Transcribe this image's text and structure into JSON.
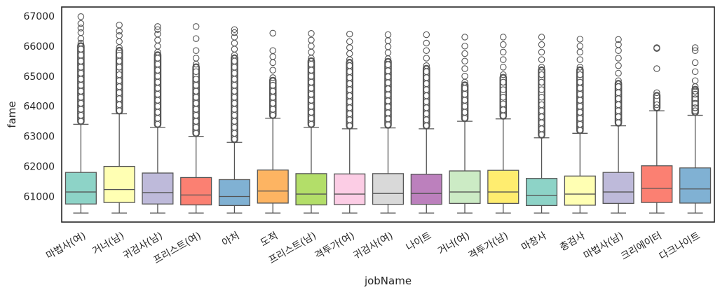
{
  "chart_data": {
    "type": "box",
    "title": "",
    "xlabel": "jobName",
    "ylabel": "fame",
    "ylim": [
      60150,
      67300
    ],
    "yticks": [
      61000,
      62000,
      63000,
      64000,
      65000,
      66000,
      67000
    ],
    "ytick_labels": [
      "61000",
      "62000",
      "63000",
      "64000",
      "65000",
      "66000",
      "67000"
    ],
    "grid": false,
    "categories": [
      "마법사(여)",
      "거너(남)",
      "귀검사(남)",
      "프리스트(여)",
      "아처",
      "도적",
      "프리스트(남)",
      "격투가(여)",
      "귀검사(여)",
      "나이트",
      "거너(여)",
      "격투가(남)",
      "마창사",
      "총검사",
      "마법사(남)",
      "크리에이터",
      "다크나이트"
    ],
    "boxes": [
      {
        "category": "마법사(여)",
        "color": "#8dd3c7",
        "whislo": 60450,
        "q1": 60750,
        "median": 61150,
        "q3": 61800,
        "whishi": 63400,
        "outlier_max": 66980,
        "outliers": [
          63500,
          63700,
          63900,
          64100,
          64300,
          64500,
          64700,
          64900,
          65100,
          65300,
          65500,
          65700,
          65900,
          66100,
          66250,
          66450,
          66600,
          66750,
          66980
        ]
      },
      {
        "category": "거너(남)",
        "color": "#ffffb3",
        "whislo": 60450,
        "q1": 60800,
        "median": 61230,
        "q3": 62000,
        "whishi": 63750,
        "outlier_max": 66700,
        "outliers": [
          63850,
          64050,
          64250,
          64450,
          64650,
          64850,
          65050,
          65300,
          65500,
          65700,
          65950,
          66150,
          66350,
          66500,
          66700
        ]
      },
      {
        "category": "귀검사(남)",
        "color": "#bebada",
        "whislo": 60450,
        "q1": 60750,
        "median": 61130,
        "q3": 61780,
        "whishi": 63300,
        "outlier_max": 66650,
        "outliers": [
          63400,
          63600,
          63800,
          64000,
          64200,
          64400,
          64600,
          64800,
          65000,
          65200,
          65400,
          65600,
          65800,
          66000,
          66200,
          66400,
          66550,
          66650
        ]
      },
      {
        "category": "프리스트(여)",
        "color": "#fb8072",
        "whislo": 60450,
        "q1": 60720,
        "median": 61050,
        "q3": 61630,
        "whishi": 63000,
        "outlier_max": 66650,
        "outliers": [
          63100,
          63300,
          63500,
          63700,
          63900,
          64100,
          64300,
          64500,
          64700,
          64900,
          65150,
          65400,
          65600,
          65850,
          66250,
          66650
        ]
      },
      {
        "category": "아처",
        "color": "#80b1d3",
        "whislo": 60450,
        "q1": 60700,
        "median": 61000,
        "q3": 61560,
        "whishi": 62800,
        "outlier_max": 66550,
        "outliers": [
          62900,
          63100,
          63300,
          63500,
          63700,
          63900,
          64100,
          64300,
          64500,
          64700,
          64900,
          65100,
          65300,
          65500,
          65700,
          65900,
          66100,
          66300,
          66450,
          66550
        ]
      },
      {
        "category": "도적",
        "color": "#fdb462",
        "whislo": 60450,
        "q1": 60780,
        "median": 61180,
        "q3": 61880,
        "whishi": 63600,
        "outlier_max": 66430,
        "outliers": [
          63700,
          63900,
          64100,
          64300,
          64500,
          64700,
          64950,
          65200,
          65450,
          65650,
          65850,
          66430
        ]
      },
      {
        "category": "프리스트(남)",
        "color": "#b3de69",
        "whislo": 60450,
        "q1": 60720,
        "median": 61080,
        "q3": 61760,
        "whishi": 63300,
        "outlier_max": 66420,
        "outliers": [
          63400,
          63600,
          63800,
          64000,
          64200,
          64400,
          64600,
          64800,
          65000,
          65200,
          65400,
          65600,
          65800,
          66000,
          66200,
          66420
        ]
      },
      {
        "category": "격투가(여)",
        "color": "#fccde5",
        "whislo": 60450,
        "q1": 60730,
        "median": 61080,
        "q3": 61750,
        "whishi": 63250,
        "outlier_max": 66400,
        "outliers": [
          63350,
          63550,
          63750,
          63950,
          64150,
          64350,
          64550,
          64750,
          64950,
          65150,
          65350,
          65550,
          65750,
          65950,
          66150,
          66400
        ]
      },
      {
        "category": "귀검사(여)",
        "color": "#d9d9d9",
        "whislo": 60450,
        "q1": 60740,
        "median": 61100,
        "q3": 61760,
        "whishi": 63280,
        "outlier_max": 66380,
        "outliers": [
          63380,
          63580,
          63780,
          63980,
          64180,
          64380,
          64580,
          64780,
          64980,
          65180,
          65380,
          65580,
          65780,
          65980,
          66180,
          66380
        ]
      },
      {
        "category": "나이트",
        "color": "#bc80bd",
        "whislo": 60450,
        "q1": 60740,
        "median": 61100,
        "q3": 61740,
        "whishi": 63250,
        "outlier_max": 66380,
        "outliers": [
          63350,
          63550,
          63750,
          63950,
          64150,
          64350,
          64550,
          64750,
          64950,
          65150,
          65350,
          65600,
          65850,
          66100,
          66380
        ]
      },
      {
        "category": "거너(여)",
        "color": "#ccebc5",
        "whislo": 60450,
        "q1": 60770,
        "median": 61150,
        "q3": 61850,
        "whishi": 63500,
        "outlier_max": 66300,
        "outliers": [
          63600,
          63800,
          64000,
          64200,
          64400,
          64600,
          64800,
          65000,
          65250,
          65500,
          65750,
          66000,
          66300
        ]
      },
      {
        "category": "격투가(남)",
        "color": "#ffed6f",
        "whislo": 60450,
        "q1": 60770,
        "median": 61150,
        "q3": 61870,
        "whishi": 63580,
        "outlier_max": 66300,
        "outliers": [
          63680,
          63880,
          64080,
          64300,
          64550,
          64800,
          65050,
          65300,
          65550,
          65800,
          66050,
          66300
        ]
      },
      {
        "category": "마창사",
        "color": "#8dd3c7",
        "whislo": 60450,
        "q1": 60700,
        "median": 61030,
        "q3": 61600,
        "whishi": 62950,
        "outlier_max": 66300,
        "outliers": [
          63050,
          63250,
          63450,
          63650,
          63850,
          64050,
          64300,
          64550,
          64800,
          65050,
          65300,
          65550,
          65800,
          66050,
          66300
        ]
      },
      {
        "category": "총검사",
        "color": "#ffffb3",
        "whislo": 60450,
        "q1": 60710,
        "median": 61080,
        "q3": 61680,
        "whishi": 63100,
        "outlier_max": 66230,
        "outliers": [
          63200,
          63400,
          63600,
          63800,
          64000,
          64200,
          64400,
          64600,
          64800,
          65050,
          65300,
          65550,
          65800,
          66000,
          66230
        ]
      },
      {
        "category": "마법사(남)",
        "color": "#bebada",
        "whislo": 60450,
        "q1": 60770,
        "median": 61150,
        "q3": 61800,
        "whishi": 63350,
        "outlier_max": 66220,
        "outliers": [
          63450,
          63650,
          63850,
          64050,
          64250,
          64450,
          64650,
          64850,
          65100,
          65350,
          65600,
          65850,
          66050,
          66220
        ]
      },
      {
        "category": "크리에이터",
        "color": "#fb8072",
        "whislo": 60450,
        "q1": 60800,
        "median": 61270,
        "q3": 62020,
        "whishi": 63850,
        "outlier_max": 65950,
        "outliers": [
          63950,
          64050,
          64350,
          64450,
          65250,
          65920,
          65950
        ]
      },
      {
        "category": "다크나이트",
        "color": "#80b1d3",
        "whislo": 60450,
        "q1": 60780,
        "median": 61250,
        "q3": 61950,
        "whishi": 63700,
        "outlier_max": 65950,
        "outliers": [
          63850,
          63950,
          64100,
          64250,
          64400,
          64500,
          64650,
          64850,
          65150,
          65450,
          65850,
          65950
        ]
      }
    ]
  }
}
